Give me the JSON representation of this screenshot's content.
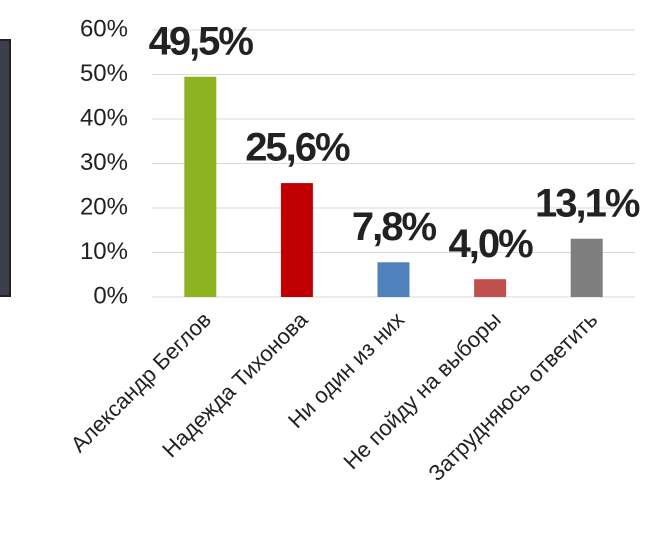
{
  "chart_data": {
    "type": "bar",
    "categories": [
      "Александр Беглов",
      "Надежда Тихонова",
      "Ни один из них",
      "Не пойду на выборы",
      "Затрудняюсь ответить"
    ],
    "values": [
      49.5,
      25.6,
      7.8,
      4.0,
      13.1
    ],
    "value_labels": [
      "49,5%",
      "25,6%",
      "7,8%",
      "4,0%",
      "13,1%"
    ],
    "colors": [
      "#8db320",
      "#c00000",
      "#4f81bd",
      "#c0504d",
      "#7f7f7f"
    ],
    "ylim": [
      0,
      60
    ],
    "yticks": [
      {
        "value": 0,
        "label": "0%"
      },
      {
        "value": 10,
        "label": "10%"
      },
      {
        "value": 20,
        "label": "20%"
      },
      {
        "value": 30,
        "label": "30%"
      },
      {
        "value": 40,
        "label": "40%"
      },
      {
        "value": 50,
        "label": "50%"
      },
      {
        "value": 60,
        "label": "60%"
      }
    ],
    "grid": true
  }
}
